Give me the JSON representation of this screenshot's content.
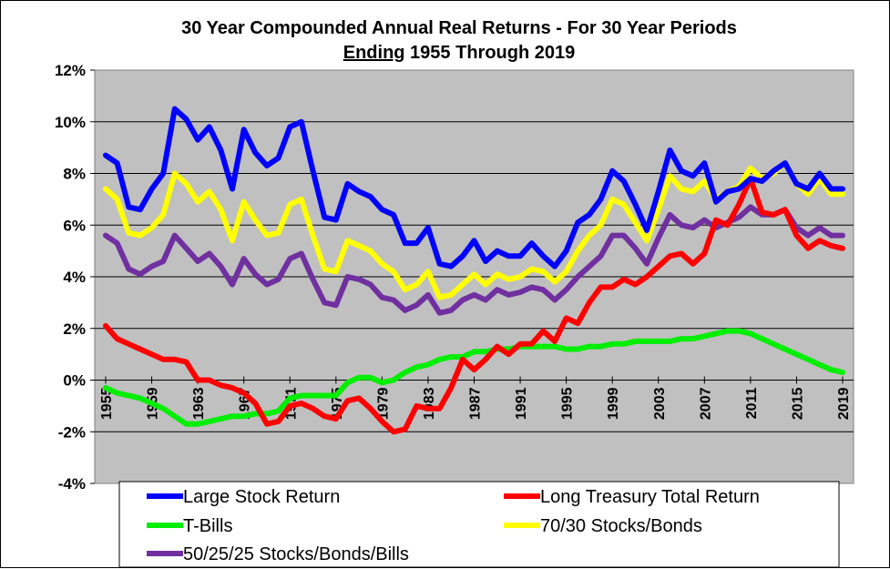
{
  "chart_data": {
    "type": "line",
    "title_line1": "30 Year Compounded Annual Real Returns - For 30 Year Periods",
    "title_line2_underlined": "Ending",
    "title_line2_rest": " 1955 Through 2019",
    "ylim": [
      -4,
      12
    ],
    "ytick_labels": [
      "12%",
      "10%",
      "8%",
      "6%",
      "4%",
      "2%",
      "0%",
      "-2%",
      "-4%"
    ],
    "ytick_values": [
      12,
      10,
      8,
      6,
      4,
      2,
      0,
      -2,
      -4
    ],
    "xtick_labels": [
      "1955",
      "1959",
      "1963",
      "1967",
      "1971",
      "1975",
      "1979",
      "1983",
      "1987",
      "1991",
      "1995",
      "1999",
      "2003",
      "2007",
      "2011",
      "2015",
      "2019"
    ],
    "grid": "horizontal",
    "plot_background": "#c0c0c0",
    "legend_position": "bottom",
    "x": [
      1955,
      1956,
      1957,
      1958,
      1959,
      1960,
      1961,
      1962,
      1963,
      1964,
      1965,
      1966,
      1967,
      1968,
      1969,
      1970,
      1971,
      1972,
      1973,
      1974,
      1975,
      1976,
      1977,
      1978,
      1979,
      1980,
      1981,
      1982,
      1983,
      1984,
      1985,
      1986,
      1987,
      1988,
      1989,
      1990,
      1991,
      1992,
      1993,
      1994,
      1995,
      1996,
      1997,
      1998,
      1999,
      2000,
      2001,
      2002,
      2003,
      2004,
      2005,
      2006,
      2007,
      2008,
      2009,
      2010,
      2011,
      2012,
      2013,
      2014,
      2015,
      2016,
      2017,
      2018,
      2019
    ],
    "series": [
      {
        "name": "Large Stock Return",
        "color": "#0000ff",
        "values": [
          8.7,
          8.4,
          6.7,
          6.6,
          7.4,
          8.0,
          10.5,
          10.1,
          9.3,
          9.8,
          8.9,
          7.4,
          9.7,
          8.8,
          8.3,
          8.6,
          9.8,
          10.0,
          8.1,
          6.3,
          6.2,
          7.6,
          7.3,
          7.1,
          6.6,
          6.4,
          5.3,
          5.3,
          5.9,
          4.5,
          4.4,
          4.8,
          5.4,
          4.6,
          5.0,
          4.8,
          4.8,
          5.3,
          4.8,
          4.4,
          5.0,
          6.1,
          6.4,
          7.0,
          8.1,
          7.7,
          6.8,
          5.8,
          7.3,
          8.9,
          8.1,
          7.9,
          8.4,
          6.9,
          7.3,
          7.4,
          7.8,
          7.7,
          8.1,
          8.4,
          7.6,
          7.4,
          8.0,
          7.4,
          7.4
        ]
      },
      {
        "name": "Long Treasury Total Return",
        "color": "#ff0000",
        "values": [
          2.1,
          1.6,
          1.4,
          1.2,
          1.0,
          0.8,
          0.8,
          0.7,
          0.0,
          0.0,
          -0.2,
          -0.3,
          -0.5,
          -0.9,
          -1.7,
          -1.6,
          -1.0,
          -0.9,
          -1.1,
          -1.4,
          -1.5,
          -0.8,
          -0.7,
          -1.1,
          -1.6,
          -2.0,
          -1.9,
          -1.0,
          -1.1,
          -1.1,
          -0.3,
          0.8,
          0.4,
          0.8,
          1.3,
          1.0,
          1.4,
          1.4,
          1.9,
          1.5,
          2.4,
          2.2,
          3.0,
          3.6,
          3.6,
          3.9,
          3.7,
          4.0,
          4.4,
          4.8,
          4.9,
          4.5,
          4.9,
          6.2,
          6.0,
          6.8,
          7.8,
          6.5,
          6.4,
          6.6,
          5.6,
          5.1,
          5.4,
          5.2,
          5.1
        ]
      },
      {
        "name": "T-Bills",
        "color": "#00ee00",
        "values": [
          -0.3,
          -0.5,
          -0.6,
          -0.7,
          -0.9,
          -1.1,
          -1.4,
          -1.7,
          -1.7,
          -1.6,
          -1.5,
          -1.4,
          -1.4,
          -1.3,
          -1.3,
          -1.2,
          -0.7,
          -0.6,
          -0.6,
          -0.6,
          -0.6,
          -0.1,
          0.1,
          0.1,
          -0.1,
          0.0,
          0.3,
          0.5,
          0.6,
          0.8,
          0.9,
          0.9,
          1.1,
          1.1,
          1.2,
          1.2,
          1.3,
          1.3,
          1.3,
          1.3,
          1.2,
          1.2,
          1.3,
          1.3,
          1.4,
          1.4,
          1.5,
          1.5,
          1.5,
          1.5,
          1.6,
          1.6,
          1.7,
          1.8,
          1.9,
          1.9,
          1.8,
          1.6,
          1.4,
          1.2,
          1.0,
          0.8,
          0.6,
          0.4,
          0.3
        ]
      },
      {
        "name": "70/30 Stocks/Bonds",
        "color": "#ffff00",
        "values": [
          7.4,
          7.0,
          5.7,
          5.6,
          5.9,
          6.4,
          8.0,
          7.6,
          6.9,
          7.3,
          6.6,
          5.4,
          6.9,
          6.2,
          5.6,
          5.7,
          6.8,
          7.0,
          5.6,
          4.3,
          4.2,
          5.4,
          5.2,
          5.0,
          4.5,
          4.2,
          3.5,
          3.7,
          4.2,
          3.2,
          3.3,
          3.7,
          4.1,
          3.7,
          4.1,
          3.9,
          4.0,
          4.3,
          4.2,
          3.8,
          4.2,
          5.0,
          5.6,
          6.0,
          7.0,
          6.8,
          6.1,
          5.4,
          6.6,
          7.9,
          7.4,
          7.3,
          7.7,
          7.0,
          7.3,
          7.5,
          8.2,
          7.8,
          8.0,
          8.4,
          7.6,
          7.2,
          7.8,
          7.2,
          7.2
        ]
      },
      {
        "name": "50/25/25 Stocks/Bonds/Bills",
        "color": "#7030a0",
        "values": [
          5.6,
          5.3,
          4.3,
          4.1,
          4.4,
          4.6,
          5.6,
          5.1,
          4.6,
          4.9,
          4.4,
          3.7,
          4.7,
          4.1,
          3.7,
          3.9,
          4.7,
          4.9,
          3.9,
          3.0,
          2.9,
          4.0,
          3.9,
          3.7,
          3.2,
          3.1,
          2.7,
          2.9,
          3.3,
          2.6,
          2.7,
          3.1,
          3.3,
          3.1,
          3.5,
          3.3,
          3.4,
          3.6,
          3.5,
          3.1,
          3.5,
          4.0,
          4.4,
          4.8,
          5.6,
          5.6,
          5.1,
          4.5,
          5.5,
          6.4,
          6.0,
          5.9,
          6.2,
          5.9,
          6.1,
          6.3,
          6.7,
          6.4,
          6.4,
          6.6,
          5.9,
          5.6,
          5.9,
          5.6,
          5.6
        ]
      }
    ]
  }
}
